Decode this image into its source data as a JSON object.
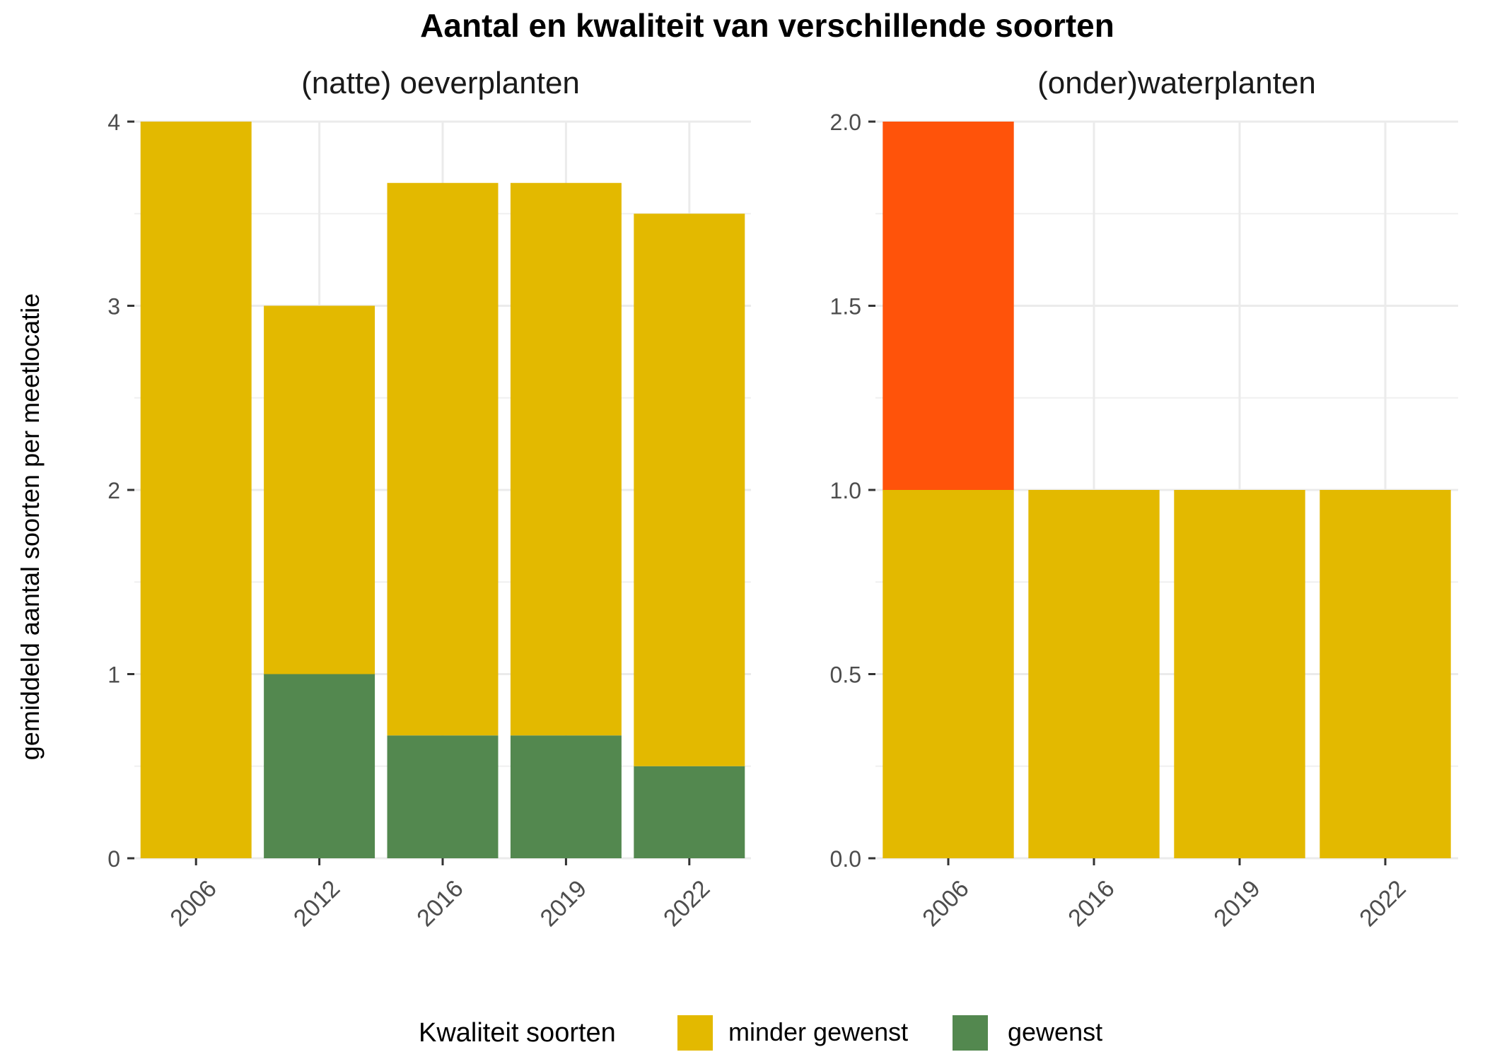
{
  "chart_data": {
    "title": "Aantal en kwaliteit van verschillende soorten",
    "ylabel": "gemiddeld aantal soorten per meetlocatie",
    "legend": {
      "title": "Kwaliteit soorten",
      "position": "bottom",
      "items": [
        {
          "name": "minder gewenst",
          "color": "#E3B900"
        },
        {
          "name": "gewenst",
          "color": "#53884F"
        }
      ]
    },
    "panels": [
      {
        "title": "(natte) oeverplanten",
        "type": "bar",
        "stacked": true,
        "categories": [
          "2006",
          "2012",
          "2016",
          "2019",
          "2022"
        ],
        "ylim": [
          0,
          4
        ],
        "yticks": [
          0,
          1,
          2,
          3,
          4
        ],
        "ytick_labels": [
          "0",
          "1",
          "2",
          "3",
          "4"
        ],
        "grid": true,
        "series": [
          {
            "name": "gewenst",
            "color": "#53884F",
            "values": [
              0,
              1,
              0.667,
              0.667,
              0.5
            ]
          },
          {
            "name": "minder gewenst",
            "color": "#E3B900",
            "values": [
              4,
              2,
              3,
              3,
              3
            ]
          }
        ]
      },
      {
        "title": "(onder)waterplanten",
        "type": "bar",
        "stacked": true,
        "categories": [
          "2006",
          "2016",
          "2019",
          "2022"
        ],
        "ylim": [
          0,
          2
        ],
        "yticks": [
          0,
          0.5,
          1,
          1.5,
          2
        ],
        "ytick_labels": [
          "0.0",
          "0.5",
          "1.0",
          "1.5",
          "2.0"
        ],
        "grid": true,
        "series": [
          {
            "name": "minder gewenst",
            "color": "#E3B900",
            "values": [
              1,
              1,
              1,
              1
            ]
          },
          {
            "color": "#FF530A",
            "values": [
              1,
              0,
              0,
              0
            ]
          }
        ]
      }
    ]
  }
}
